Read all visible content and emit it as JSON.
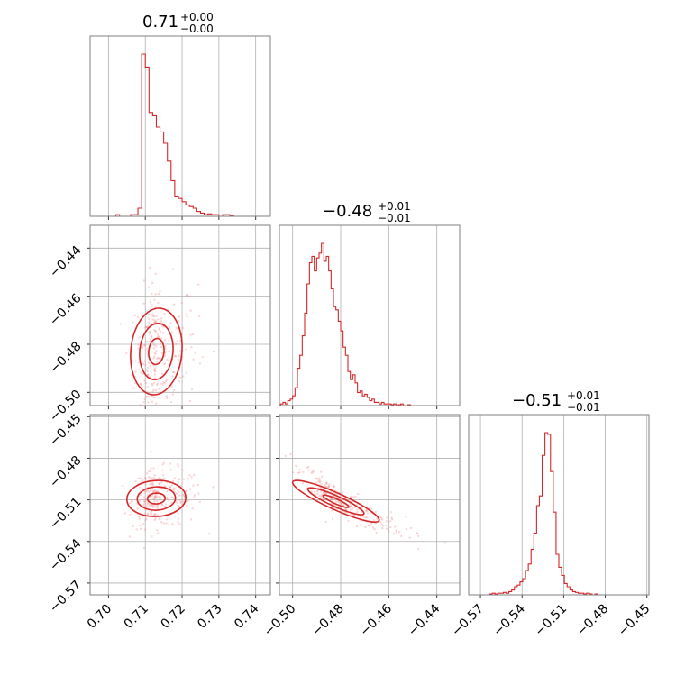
{
  "chart_data": {
    "type": "corner",
    "color": "#d62728",
    "fill_light": "#f5c6c6",
    "fill_mid": "#eb9999",
    "fill_dark": "#dc4a4a",
    "titles": [
      {
        "value": "0.71",
        "plus": "+0.00",
        "minus": "−0.00"
      },
      {
        "value": "−0.48",
        "plus": "+0.01",
        "minus": "−0.01"
      },
      {
        "value": "−0.51",
        "plus": "+0.01",
        "minus": "−0.01"
      }
    ],
    "params": [
      {
        "range": [
          0.695,
          0.744
        ],
        "ticks": [
          0.7,
          0.71,
          0.72,
          0.73,
          0.74
        ],
        "tick_labels": [
          "0.70",
          "0.71",
          "0.72",
          "0.73",
          "0.74"
        ]
      },
      {
        "range": [
          -0.5055,
          -0.4305
        ],
        "ticks": [
          -0.5,
          -0.48,
          -0.46,
          -0.44
        ],
        "tick_labels": [
          "−0.50",
          "−0.48",
          "−0.46",
          "−0.44"
        ]
      },
      {
        "range": [
          -0.5785,
          -0.4485
        ],
        "ticks": [
          -0.57,
          -0.54,
          -0.51,
          -0.48,
          -0.45
        ],
        "tick_labels": [
          "−0.57",
          "−0.54",
          "−0.51",
          "−0.48",
          "−0.45"
        ]
      }
    ],
    "histograms": [
      {
        "x": [
          0.6995,
          0.7005,
          0.7015,
          0.7025,
          0.7035,
          0.7045,
          0.7055,
          0.7065,
          0.7075,
          0.7085,
          0.7095,
          0.7105,
          0.7115,
          0.7125,
          0.7135,
          0.7145,
          0.7155,
          0.7165,
          0.7175,
          0.7185,
          0.7195,
          0.7205,
          0.7215,
          0.7225,
          0.7235,
          0.7245,
          0.7255,
          0.7265,
          0.7275,
          0.7285,
          0.7295,
          0.7305,
          0.7315,
          0.7325,
          0.7335,
          0.7345,
          0.7355,
          0.7365,
          0.7375,
          0.7385,
          0.7395,
          0.7405,
          0.7415,
          0.7425
        ],
        "y": [
          0,
          0,
          0,
          0.01,
          0,
          0,
          0,
          0.01,
          0.01,
          0.05,
          1.0,
          0.92,
          0.64,
          0.62,
          0.55,
          0.52,
          0.45,
          0.34,
          0.22,
          0.12,
          0.11,
          0.09,
          0.07,
          0.06,
          0.05,
          0.03,
          0.02,
          0.01,
          0.015,
          0.01,
          0.01,
          0,
          0.01,
          0.01,
          0.005,
          0,
          0,
          0,
          0,
          0,
          0,
          0,
          0,
          0
        ]
      },
      {
        "x": [
          -0.5045,
          -0.5035,
          -0.5025,
          -0.5015,
          -0.5005,
          -0.4995,
          -0.4985,
          -0.4975,
          -0.4965,
          -0.4955,
          -0.4945,
          -0.4935,
          -0.4925,
          -0.4915,
          -0.4905,
          -0.4895,
          -0.4885,
          -0.4875,
          -0.4865,
          -0.4855,
          -0.4845,
          -0.4835,
          -0.4825,
          -0.4815,
          -0.4805,
          -0.4795,
          -0.4785,
          -0.4775,
          -0.4765,
          -0.4755,
          -0.4745,
          -0.4735,
          -0.4725,
          -0.4715,
          -0.4705,
          -0.4695,
          -0.4685,
          -0.4675,
          -0.4665,
          -0.4655,
          -0.4645,
          -0.4635,
          -0.4625,
          -0.4615,
          -0.4605,
          -0.4595,
          -0.4585,
          -0.4575,
          -0.4565,
          -0.4555,
          -0.4545,
          -0.4535,
          -0.4525,
          -0.4515,
          -0.4505,
          -0.4495,
          -0.4485,
          -0.4475,
          -0.4465,
          -0.4455,
          -0.4445,
          -0.4435,
          -0.4425,
          -0.4415,
          -0.4405,
          -0.4395,
          -0.4385,
          -0.4375,
          -0.4365,
          -0.4355,
          -0.4345,
          -0.4335,
          -0.4325,
          -0.4315
        ],
        "y": [
          0.01,
          0.02,
          0.01,
          0.03,
          0.04,
          0.06,
          0.11,
          0.23,
          0.31,
          0.43,
          0.57,
          0.75,
          0.88,
          0.92,
          0.83,
          0.91,
          0.94,
          1.0,
          0.89,
          0.92,
          0.83,
          0.72,
          0.61,
          0.59,
          0.52,
          0.46,
          0.36,
          0.31,
          0.21,
          0.16,
          0.19,
          0.14,
          0.08,
          0.09,
          0.06,
          0.07,
          0.05,
          0.03,
          0.04,
          0.02,
          0.02,
          0.01,
          0.02,
          0.01,
          0.01,
          0.01,
          0.005,
          0.01,
          0,
          0.005,
          0.01,
          0,
          0,
          0.005,
          0,
          0,
          0,
          0,
          0,
          0,
          0,
          0,
          0,
          0,
          0,
          0,
          0,
          0,
          0,
          0,
          0,
          0,
          0,
          0
        ]
      },
      {
        "x": [
          -0.5765,
          -0.5745,
          -0.5725,
          -0.5705,
          -0.5685,
          -0.5665,
          -0.5645,
          -0.5625,
          -0.5605,
          -0.5585,
          -0.5565,
          -0.5545,
          -0.5525,
          -0.5505,
          -0.5485,
          -0.5465,
          -0.5445,
          -0.5425,
          -0.5405,
          -0.5385,
          -0.5365,
          -0.5345,
          -0.5325,
          -0.5305,
          -0.5285,
          -0.5265,
          -0.5245,
          -0.5225,
          -0.5205,
          -0.5185,
          -0.5165,
          -0.5145,
          -0.5125,
          -0.5105,
          -0.5085,
          -0.5065,
          -0.5045,
          -0.5025,
          -0.5005,
          -0.4985,
          -0.4965,
          -0.4945,
          -0.4925,
          -0.4905,
          -0.4885,
          -0.4865,
          -0.4845,
          -0.4825,
          -0.4805,
          -0.4785,
          -0.4765,
          -0.4745,
          -0.4725,
          -0.4705,
          -0.4685,
          -0.4665,
          -0.4645,
          -0.4625,
          -0.4605,
          -0.4585,
          -0.4565,
          -0.4545,
          -0.4525,
          -0.4505
        ],
        "y": [
          0,
          0,
          0,
          0,
          0,
          0,
          0,
          0.005,
          0.01,
          0.005,
          0.01,
          0.01,
          0.015,
          0.01,
          0.02,
          0.03,
          0.05,
          0.06,
          0.08,
          0.1,
          0.15,
          0.19,
          0.28,
          0.38,
          0.55,
          0.61,
          0.86,
          1.0,
          0.99,
          0.76,
          0.51,
          0.25,
          0.17,
          0.12,
          0.07,
          0.05,
          0.03,
          0.02,
          0.015,
          0.01,
          0.01,
          0.005,
          0.01,
          0.005,
          0,
          0.005,
          0,
          0,
          0,
          0,
          0,
          0,
          0,
          0,
          0,
          0,
          0,
          0,
          0,
          0,
          0,
          0,
          0,
          0
        ]
      }
    ],
    "pairs": [
      {
        "row": 1,
        "col": 0,
        "center": [
          0.713,
          -0.483
        ],
        "sigma": [
          0.0035,
          0.009
        ],
        "rho": 0.1
      },
      {
        "row": 2,
        "col": 0,
        "center": [
          0.713,
          -0.509
        ],
        "sigma": [
          0.004,
          0.0065
        ],
        "rho": 0.05
      },
      {
        "row": 2,
        "col": 1,
        "center": [
          -0.482,
          -0.511
        ],
        "sigma": [
          0.009,
          0.0075
        ],
        "rho": -0.9
      }
    ]
  }
}
